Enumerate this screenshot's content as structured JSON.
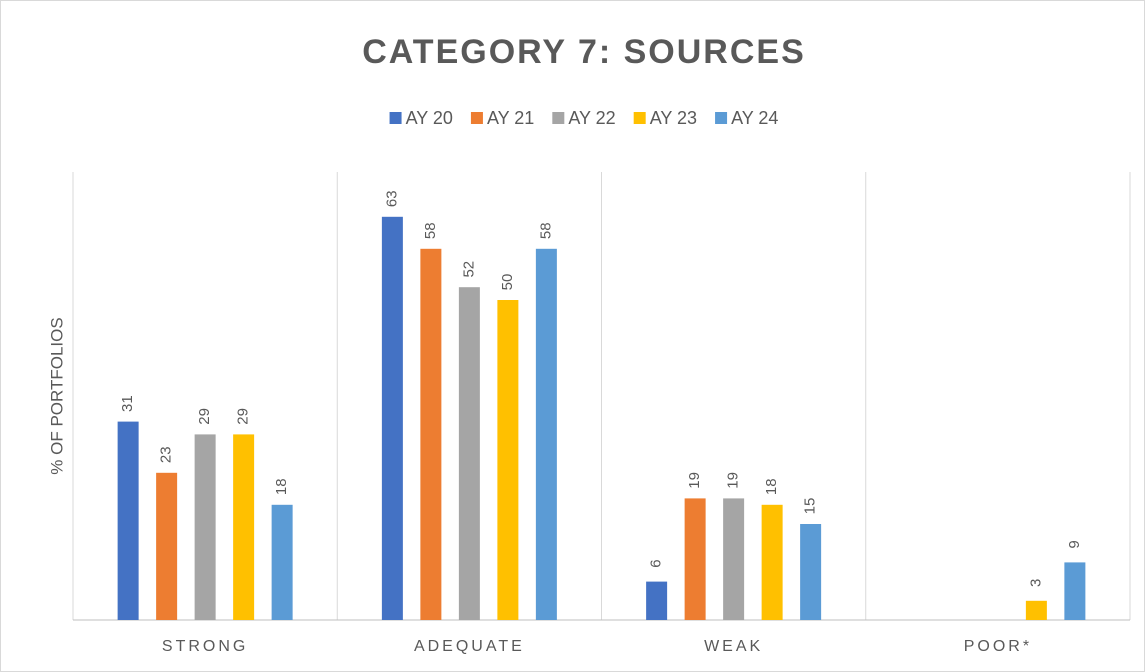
{
  "chart_data": {
    "type": "bar",
    "title": "CATEGORY 7: SOURCES",
    "y_label": "% OF PORTFOLIOS",
    "categories": [
      "STRONG",
      "ADEQUATE",
      "WEAK",
      "POOR*"
    ],
    "series": [
      {
        "name": "AY 20",
        "color": "#4472c4",
        "values": [
          31,
          63,
          6,
          null
        ]
      },
      {
        "name": "AY 21",
        "color": "#ed7d31",
        "values": [
          23,
          58,
          19,
          null
        ]
      },
      {
        "name": "AY 22",
        "color": "#a5a5a5",
        "values": [
          29,
          52,
          19,
          null
        ]
      },
      {
        "name": "AY 23",
        "color": "#ffc000",
        "values": [
          29,
          50,
          18,
          3
        ]
      },
      {
        "name": "AY 24",
        "color": "#5b9bd5",
        "values": [
          18,
          58,
          15,
          9
        ]
      }
    ],
    "ylim": [
      0,
      70
    ],
    "legend": "top",
    "data_labels": true
  }
}
